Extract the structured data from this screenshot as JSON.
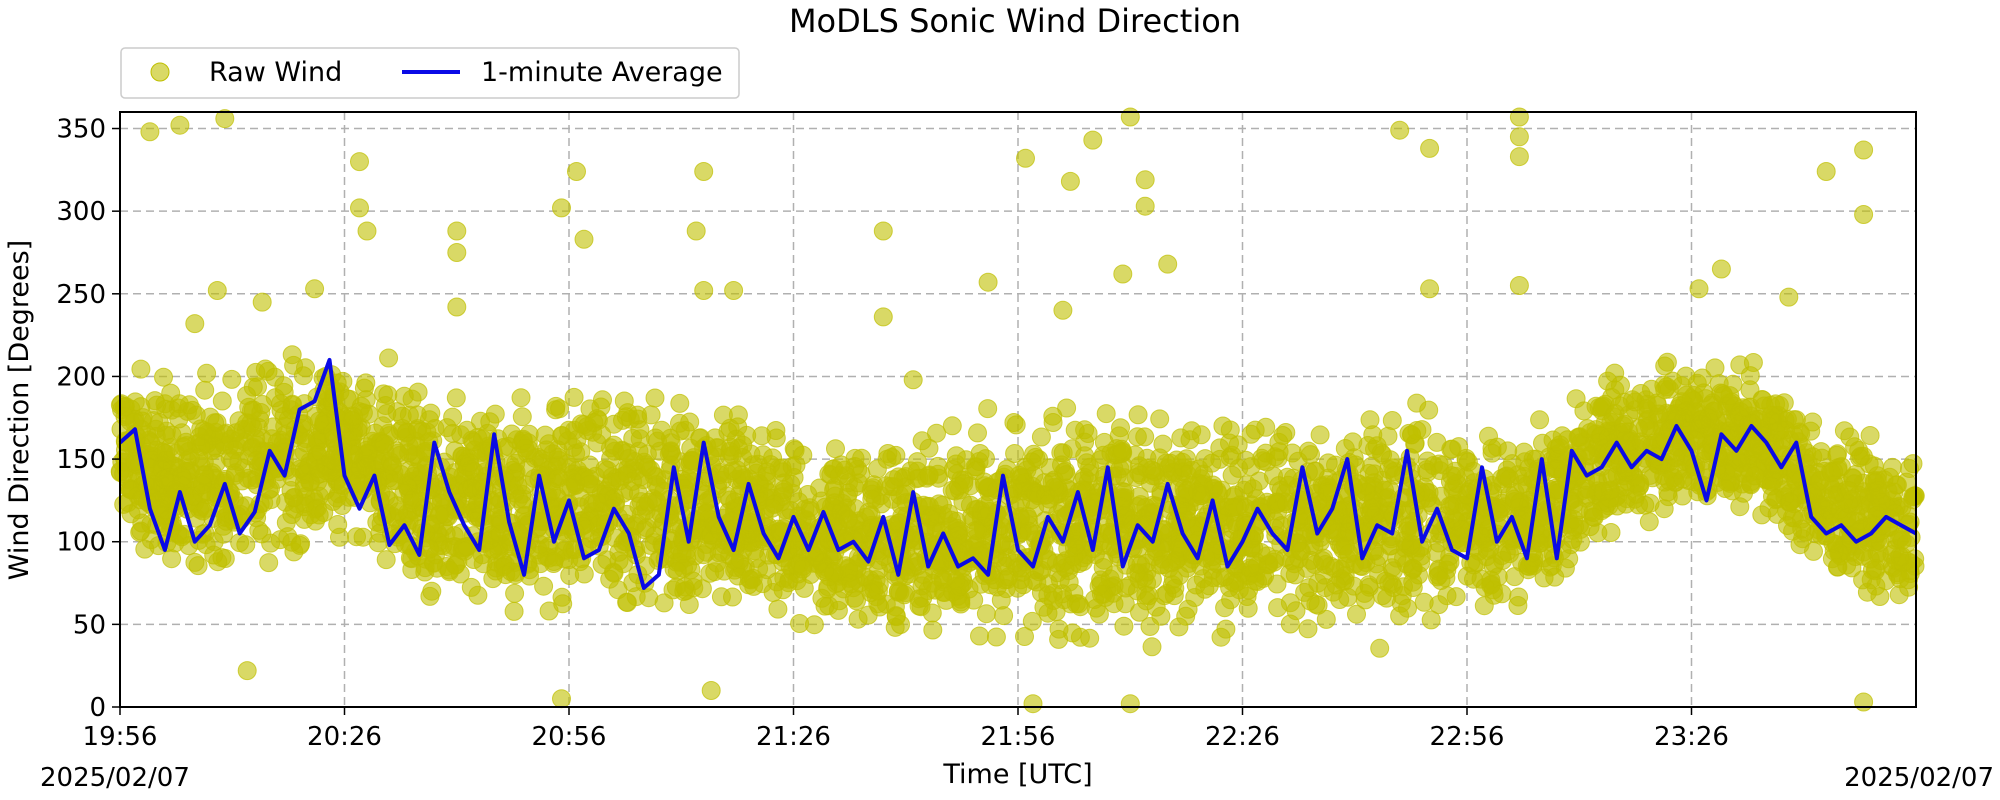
{
  "chart_data": {
    "type": "scatter",
    "title": "MoDLS Sonic Wind Direction",
    "xlabel": "Time [UTC]",
    "ylabel": "Wind Direction [Degrees]",
    "x_range": [
      "19:56",
      "23:56"
    ],
    "ylim": [
      0,
      360
    ],
    "x_ticks": [
      "19:56",
      "20:26",
      "20:56",
      "21:26",
      "21:56",
      "22:26",
      "22:56",
      "23:26"
    ],
    "y_ticks": [
      0,
      50,
      100,
      150,
      200,
      250,
      300,
      350
    ],
    "start_date": "2025/02/07",
    "end_date": "2025/02/07",
    "grid": true,
    "legend_position": "top-left",
    "series": [
      {
        "name": "Raw Wind",
        "kind": "scatter",
        "color": "#bfbf00",
        "approx_band": {
          "x": [
            "19:56",
            "20:06",
            "20:16",
            "20:26",
            "20:36",
            "20:46",
            "20:56",
            "21:06",
            "21:16",
            "21:26",
            "21:36",
            "21:46",
            "21:56",
            "22:06",
            "22:16",
            "22:26",
            "22:36",
            "22:46",
            "22:56",
            "23:06",
            "23:16",
            "23:26",
            "23:36",
            "23:46",
            "23:56"
          ],
          "low": [
            115,
            70,
            80,
            110,
            60,
            55,
            60,
            55,
            55,
            50,
            45,
            45,
            45,
            45,
            45,
            50,
            50,
            45,
            55,
            65,
            110,
            130,
            115,
            70,
            60
          ],
          "high": [
            200,
            195,
            215,
            205,
            195,
            190,
            185,
            195,
            175,
            165,
            160,
            165,
            170,
            180,
            175,
            170,
            175,
            185,
            170,
            175,
            200,
            205,
            200,
            165,
            150
          ]
        },
        "outliers": [
          {
            "x": "20:00",
            "y": 348
          },
          {
            "x": "20:04",
            "y": 352
          },
          {
            "x": "20:10",
            "y": 356
          },
          {
            "x": "20:09",
            "y": 252
          },
          {
            "x": "20:06",
            "y": 232
          },
          {
            "x": "20:13",
            "y": 22
          },
          {
            "x": "20:15",
            "y": 245
          },
          {
            "x": "20:28",
            "y": 330
          },
          {
            "x": "20:28",
            "y": 302
          },
          {
            "x": "20:29",
            "y": 288
          },
          {
            "x": "20:41",
            "y": 288
          },
          {
            "x": "20:41",
            "y": 275
          },
          {
            "x": "20:41",
            "y": 242
          },
          {
            "x": "20:55",
            "y": 302
          },
          {
            "x": "20:57",
            "y": 324
          },
          {
            "x": "20:58",
            "y": 283
          },
          {
            "x": "21:14",
            "y": 324
          },
          {
            "x": "21:13",
            "y": 288
          },
          {
            "x": "21:14",
            "y": 252
          },
          {
            "x": "21:18",
            "y": 252
          },
          {
            "x": "21:38",
            "y": 288
          },
          {
            "x": "21:38",
            "y": 236
          },
          {
            "x": "21:52",
            "y": 257
          },
          {
            "x": "21:57",
            "y": 332
          },
          {
            "x": "22:06",
            "y": 343
          },
          {
            "x": "22:03",
            "y": 318
          },
          {
            "x": "22:11",
            "y": 357
          },
          {
            "x": "22:13",
            "y": 319
          },
          {
            "x": "22:13",
            "y": 303
          },
          {
            "x": "22:10",
            "y": 262
          },
          {
            "x": "22:16",
            "y": 268
          },
          {
            "x": "22:47",
            "y": 349
          },
          {
            "x": "22:51",
            "y": 338
          },
          {
            "x": "22:51",
            "y": 253
          },
          {
            "x": "23:03",
            "y": 357
          },
          {
            "x": "23:03",
            "y": 345
          },
          {
            "x": "23:03",
            "y": 333
          },
          {
            "x": "23:03",
            "y": 255
          },
          {
            "x": "23:27",
            "y": 253
          },
          {
            "x": "23:30",
            "y": 265
          },
          {
            "x": "23:39",
            "y": 248
          },
          {
            "x": "23:44",
            "y": 324
          },
          {
            "x": "23:49",
            "y": 337
          },
          {
            "x": "23:49",
            "y": 298
          },
          {
            "x": "20:22",
            "y": 253
          },
          {
            "x": "21:58",
            "y": 2
          },
          {
            "x": "22:11",
            "y": 2
          },
          {
            "x": "20:55",
            "y": 5
          },
          {
            "x": "21:42",
            "y": 198
          },
          {
            "x": "21:15",
            "y": 10
          },
          {
            "x": "23:49",
            "y": 3
          },
          {
            "x": "22:02",
            "y": 240
          }
        ]
      },
      {
        "name": "1-minute Average",
        "kind": "line",
        "color": "#0a0ae6",
        "x": [
          "19:56",
          "19:58",
          "20:00",
          "20:02",
          "20:04",
          "20:06",
          "20:08",
          "20:10",
          "20:12",
          "20:14",
          "20:16",
          "20:18",
          "20:20",
          "20:22",
          "20:24",
          "20:26",
          "20:28",
          "20:30",
          "20:32",
          "20:34",
          "20:36",
          "20:38",
          "20:40",
          "20:42",
          "20:44",
          "20:46",
          "20:48",
          "20:50",
          "20:52",
          "20:54",
          "20:56",
          "20:58",
          "21:00",
          "21:02",
          "21:04",
          "21:06",
          "21:08",
          "21:10",
          "21:12",
          "21:14",
          "21:16",
          "21:18",
          "21:20",
          "21:22",
          "21:24",
          "21:26",
          "21:28",
          "21:30",
          "21:32",
          "21:34",
          "21:36",
          "21:38",
          "21:40",
          "21:42",
          "21:44",
          "21:46",
          "21:48",
          "21:50",
          "21:52",
          "21:54",
          "21:56",
          "21:58",
          "22:00",
          "22:02",
          "22:04",
          "22:06",
          "22:08",
          "22:10",
          "22:12",
          "22:14",
          "22:16",
          "22:18",
          "22:20",
          "22:22",
          "22:24",
          "22:26",
          "22:28",
          "22:30",
          "22:32",
          "22:34",
          "22:36",
          "22:38",
          "22:40",
          "22:42",
          "22:44",
          "22:46",
          "22:48",
          "22:50",
          "22:52",
          "22:54",
          "22:56",
          "22:58",
          "23:00",
          "23:02",
          "23:04",
          "23:06",
          "23:08",
          "23:10",
          "23:12",
          "23:14",
          "23:16",
          "23:18",
          "23:20",
          "23:22",
          "23:24",
          "23:26",
          "23:28",
          "23:30",
          "23:32",
          "23:34",
          "23:36",
          "23:38",
          "23:40",
          "23:42",
          "23:44",
          "23:46",
          "23:48",
          "23:50",
          "23:52",
          "23:54",
          "23:56"
        ],
        "y": [
          160,
          168,
          120,
          95,
          130,
          100,
          110,
          135,
          105,
          118,
          155,
          140,
          180,
          185,
          210,
          140,
          120,
          140,
          98,
          110,
          92,
          160,
          130,
          110,
          95,
          165,
          112,
          80,
          140,
          100,
          125,
          90,
          95,
          120,
          105,
          72,
          80,
          145,
          100,
          160,
          115,
          95,
          135,
          105,
          90,
          115,
          95,
          118,
          95,
          100,
          88,
          115,
          80,
          130,
          85,
          105,
          85,
          90,
          80,
          140,
          95,
          85,
          115,
          100,
          130,
          95,
          145,
          85,
          110,
          100,
          135,
          105,
          90,
          125,
          85,
          100,
          120,
          105,
          95,
          145,
          105,
          120,
          150,
          90,
          110,
          105,
          155,
          100,
          120,
          95,
          90,
          145,
          100,
          115,
          90,
          150,
          90,
          155,
          140,
          145,
          160,
          145,
          155,
          150,
          170,
          155,
          125,
          165,
          155,
          170,
          160,
          145,
          160,
          115,
          105,
          110,
          100,
          105,
          115,
          110,
          105
        ]
      }
    ]
  }
}
